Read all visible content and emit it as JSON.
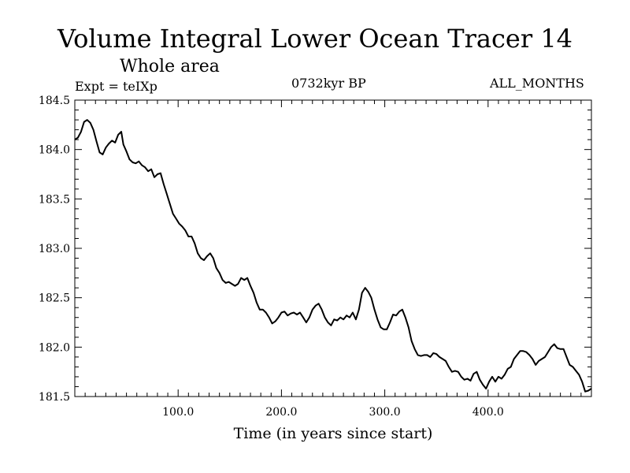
{
  "header": {
    "title": "Volume Integral Lower Ocean Tracer 14",
    "subtitle": "Whole area",
    "expt_label": "Expt = teIXp",
    "period_label": "0732kyr BP",
    "months_label": "ALL_MONTHS"
  },
  "chart_data": {
    "type": "line",
    "title": "Volume Integral Lower Ocean Tracer 14",
    "subtitle": "Whole area",
    "xlabel": "Time (in years since start)",
    "ylabel": "",
    "xlim": [
      0,
      500
    ],
    "ylim": [
      181.5,
      184.5
    ],
    "x_ticks": [
      100,
      200,
      300,
      400
    ],
    "x_tick_labels": [
      "100.0",
      "200.0",
      "300.0",
      "400.0"
    ],
    "y_ticks": [
      181.5,
      182.0,
      182.5,
      183.0,
      183.5,
      184.0,
      184.5
    ],
    "y_tick_labels": [
      "181.5",
      "182.0",
      "182.5",
      "183.0",
      "183.5",
      "184.0",
      "184.5"
    ],
    "grid": false,
    "series": [
      {
        "color": "#000000",
        "x": [
          0,
          3,
          6,
          9,
          12,
          15,
          18,
          21,
          24,
          27,
          30,
          33,
          36,
          39,
          42,
          45,
          47,
          50,
          53,
          56,
          59,
          62,
          65,
          68,
          71,
          74,
          77,
          80,
          83,
          86,
          89,
          92,
          95,
          98,
          101,
          104,
          107,
          110,
          113,
          116,
          119,
          122,
          125,
          128,
          131,
          134,
          137,
          140,
          143,
          146,
          149,
          152,
          155,
          158,
          161,
          164,
          167,
          170,
          173,
          176,
          179,
          182,
          185,
          188,
          191,
          194,
          197,
          200,
          203,
          206,
          209,
          212,
          215,
          218,
          221,
          224,
          227,
          230,
          233,
          236,
          239,
          242,
          245,
          248,
          251,
          254,
          257,
          260,
          263,
          266,
          269,
          272,
          275,
          278,
          281,
          284,
          287,
          290,
          293,
          296,
          299,
          302,
          305,
          308,
          311,
          314,
          317,
          320,
          323,
          326,
          329,
          332,
          335,
          338,
          341,
          344,
          347,
          350,
          353,
          356,
          359,
          362,
          365,
          368,
          371,
          374,
          377,
          380,
          383,
          386,
          389,
          392,
          395,
          398,
          401,
          404,
          407,
          410,
          413,
          416,
          419,
          422,
          425,
          428,
          431,
          434,
          437,
          440,
          443,
          446,
          449,
          452,
          455,
          458,
          461,
          464,
          467,
          470,
          473,
          476,
          479,
          482,
          485,
          488,
          491,
          494,
          497,
          500
        ],
        "y": [
          184.1,
          184.12,
          184.18,
          184.28,
          184.3,
          184.27,
          184.2,
          184.08,
          183.97,
          183.95,
          184.02,
          184.06,
          184.09,
          184.07,
          184.15,
          184.18,
          184.05,
          183.98,
          183.9,
          183.87,
          183.86,
          183.88,
          183.84,
          183.82,
          183.78,
          183.8,
          183.72,
          183.75,
          183.76,
          183.65,
          183.55,
          183.45,
          183.35,
          183.3,
          183.25,
          183.22,
          183.18,
          183.12,
          183.12,
          183.05,
          182.95,
          182.9,
          182.88,
          182.92,
          182.95,
          182.9,
          182.8,
          182.75,
          182.68,
          182.65,
          182.66,
          182.64,
          182.62,
          182.64,
          182.7,
          182.68,
          182.7,
          182.62,
          182.55,
          182.45,
          182.38,
          182.38,
          182.35,
          182.3,
          182.24,
          182.26,
          182.3,
          182.35,
          182.36,
          182.32,
          182.34,
          182.35,
          182.33,
          182.35,
          182.3,
          182.25,
          182.3,
          182.38,
          182.42,
          182.44,
          182.38,
          182.3,
          182.25,
          182.22,
          182.28,
          182.27,
          182.3,
          182.28,
          182.32,
          182.3,
          182.35,
          182.28,
          182.38,
          182.55,
          182.6,
          182.56,
          182.5,
          182.38,
          182.28,
          182.2,
          182.18,
          182.18,
          182.25,
          182.33,
          182.32,
          182.36,
          182.38,
          182.3,
          182.2,
          182.06,
          181.98,
          181.92,
          181.91,
          181.92,
          181.92,
          181.9,
          181.94,
          181.93,
          181.9,
          181.88,
          181.86,
          181.8,
          181.75,
          181.76,
          181.75,
          181.7,
          181.67,
          181.68,
          181.66,
          181.73,
          181.75,
          181.67,
          181.62,
          181.58,
          181.65,
          181.7,
          181.65,
          181.7,
          181.68,
          181.72,
          181.78,
          181.8,
          181.88,
          181.92,
          181.96,
          181.96,
          181.95,
          181.92,
          181.88,
          181.82,
          181.86,
          181.88,
          181.9,
          181.95,
          182.0,
          182.03,
          181.99,
          181.98,
          181.98,
          181.9,
          181.82,
          181.8,
          181.76,
          181.72,
          181.65,
          181.55,
          181.56,
          181.58
        ]
      }
    ]
  }
}
